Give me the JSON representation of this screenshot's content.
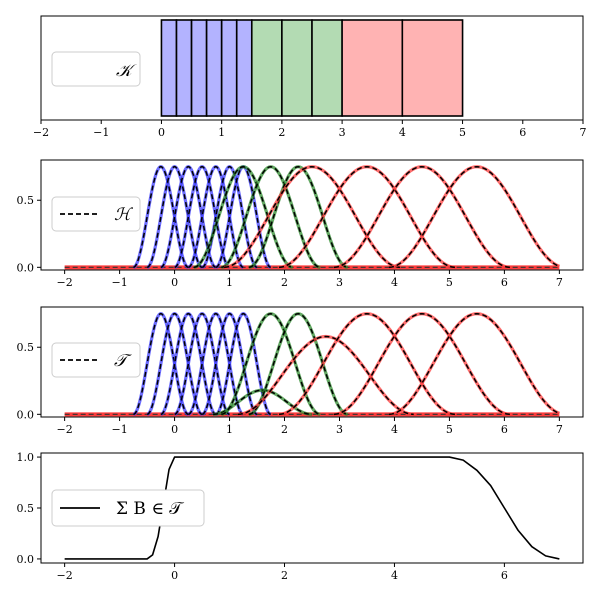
{
  "chart_data": [
    {
      "type": "bar",
      "subplot": 1,
      "xlim": [
        -2,
        7
      ],
      "xticks": [
        "−2",
        "−1",
        "0",
        "1",
        "2",
        "3",
        "4",
        "5",
        "6",
        "7"
      ],
      "yticks": [],
      "grid": false,
      "legend": {
        "position": "center-left",
        "entries": [
          {
            "label": "𝒦",
            "style": "none"
          }
        ]
      },
      "cells": [
        {
          "x0": 0.0,
          "x1": 0.25,
          "group": "blue"
        },
        {
          "x0": 0.25,
          "x1": 0.5,
          "group": "blue"
        },
        {
          "x0": 0.5,
          "x1": 0.75,
          "group": "blue"
        },
        {
          "x0": 0.75,
          "x1": 1.0,
          "group": "blue"
        },
        {
          "x0": 1.0,
          "x1": 1.25,
          "group": "blue"
        },
        {
          "x0": 1.25,
          "x1": 1.5,
          "group": "blue"
        },
        {
          "x0": 1.5,
          "x1": 2.0,
          "group": "green"
        },
        {
          "x0": 2.0,
          "x1": 2.5,
          "group": "green"
        },
        {
          "x0": 2.5,
          "x1": 3.0,
          "group": "green"
        },
        {
          "x0": 3.0,
          "x1": 4.0,
          "group": "red"
        },
        {
          "x0": 4.0,
          "x1": 5.0,
          "group": "red"
        }
      ],
      "colors": {
        "blue": "#b3b3ff",
        "green": "#b3dbb3",
        "red": "#ffb3b3",
        "edge": "#000000"
      }
    },
    {
      "type": "line",
      "subplot": 2,
      "xlim": [
        -2,
        7
      ],
      "ylim": [
        -0.02,
        0.8
      ],
      "xticks": [
        "−2",
        "−1",
        "0",
        "1",
        "2",
        "3",
        "4",
        "5",
        "6",
        "7"
      ],
      "yticks": [
        {
          "value": 0.0,
          "label": "0.0"
        },
        {
          "value": 0.5,
          "label": "0.5"
        }
      ],
      "grid": false,
      "legend": {
        "position": "center-left",
        "entries": [
          {
            "label": "ℋ",
            "style": "dashed"
          }
        ]
      },
      "peak": 0.75,
      "basis_peaks": [
        {
          "x": -0.25,
          "group": "blue",
          "height": 0.75
        },
        {
          "x": 0.0,
          "group": "blue",
          "height": 0.75
        },
        {
          "x": 0.25,
          "group": "blue",
          "height": 0.75
        },
        {
          "x": 0.5,
          "group": "blue",
          "height": 0.75
        },
        {
          "x": 0.75,
          "group": "blue",
          "height": 0.75
        },
        {
          "x": 1.0,
          "group": "blue",
          "height": 0.75
        },
        {
          "x": 1.25,
          "group": "blue",
          "height": 0.75
        },
        {
          "x": 1.25,
          "group": "green",
          "height": 0.75
        },
        {
          "x": 1.75,
          "group": "green",
          "height": 0.75
        },
        {
          "x": 2.25,
          "group": "green",
          "height": 0.75
        },
        {
          "x": 2.5,
          "group": "red",
          "height": 0.75
        },
        {
          "x": 3.5,
          "group": "red",
          "height": 0.75
        },
        {
          "x": 4.5,
          "group": "red",
          "height": 0.75
        },
        {
          "x": 5.5,
          "group": "red",
          "height": 0.75
        }
      ]
    },
    {
      "type": "line",
      "subplot": 3,
      "xlim": [
        -2,
        7
      ],
      "ylim": [
        -0.02,
        0.8
      ],
      "xticks": [
        "−2",
        "−1",
        "0",
        "1",
        "2",
        "3",
        "4",
        "5",
        "6",
        "7"
      ],
      "yticks": [
        {
          "value": 0.0,
          "label": "0.0"
        },
        {
          "value": 0.5,
          "label": "0.5"
        }
      ],
      "grid": false,
      "legend": {
        "position": "center-left",
        "entries": [
          {
            "label": "𝒯",
            "style": "dashed"
          }
        ]
      },
      "peak": 0.75,
      "basis_peaks": [
        {
          "x": -0.25,
          "group": "blue",
          "height": 0.75
        },
        {
          "x": 0.0,
          "group": "blue",
          "height": 0.75
        },
        {
          "x": 0.25,
          "group": "blue",
          "height": 0.75
        },
        {
          "x": 0.5,
          "group": "blue",
          "height": 0.75
        },
        {
          "x": 0.75,
          "group": "blue",
          "height": 0.75
        },
        {
          "x": 1.0,
          "group": "blue",
          "height": 0.75
        },
        {
          "x": 1.25,
          "group": "blue",
          "height": 0.75
        },
        {
          "x": 1.6,
          "group": "green",
          "height": 0.18
        },
        {
          "x": 1.75,
          "group": "green",
          "height": 0.75
        },
        {
          "x": 2.25,
          "group": "green",
          "height": 0.75
        },
        {
          "x": 2.75,
          "group": "red",
          "height": 0.58
        },
        {
          "x": 3.5,
          "group": "red",
          "height": 0.75
        },
        {
          "x": 4.5,
          "group": "red",
          "height": 0.75
        },
        {
          "x": 5.5,
          "group": "red",
          "height": 0.75
        }
      ]
    },
    {
      "type": "line",
      "subplot": 4,
      "xlim": [
        -2,
        7
      ],
      "ylim": [
        -0.04,
        1.04
      ],
      "xticks": [
        "−2",
        "0",
        "2",
        "4",
        "6"
      ],
      "yticks": [
        {
          "value": 0.0,
          "label": "0.0"
        },
        {
          "value": 0.5,
          "label": "0.5"
        },
        {
          "value": 1.0,
          "label": "1.0"
        }
      ],
      "grid": false,
      "legend": {
        "position": "center-left",
        "entries": [
          {
            "label": "Σ B  ∈ 𝒯",
            "style": "solid"
          }
        ]
      },
      "series": [
        {
          "color": "#000000",
          "x": [
            -2,
            -0.5,
            -0.4,
            -0.3,
            -0.2,
            -0.1,
            0,
            5,
            5.25,
            5.5,
            5.75,
            6,
            6.25,
            6.5,
            6.75,
            7
          ],
          "y": [
            0,
            0,
            0.04,
            0.22,
            0.55,
            0.88,
            1.0,
            1.0,
            0.97,
            0.87,
            0.72,
            0.5,
            0.28,
            0.12,
            0.03,
            0
          ]
        }
      ]
    }
  ],
  "colors": {
    "blue": "#3c3cff",
    "green": "#2e8b2e",
    "red": "#ff3c3c",
    "dash": "#000000"
  }
}
